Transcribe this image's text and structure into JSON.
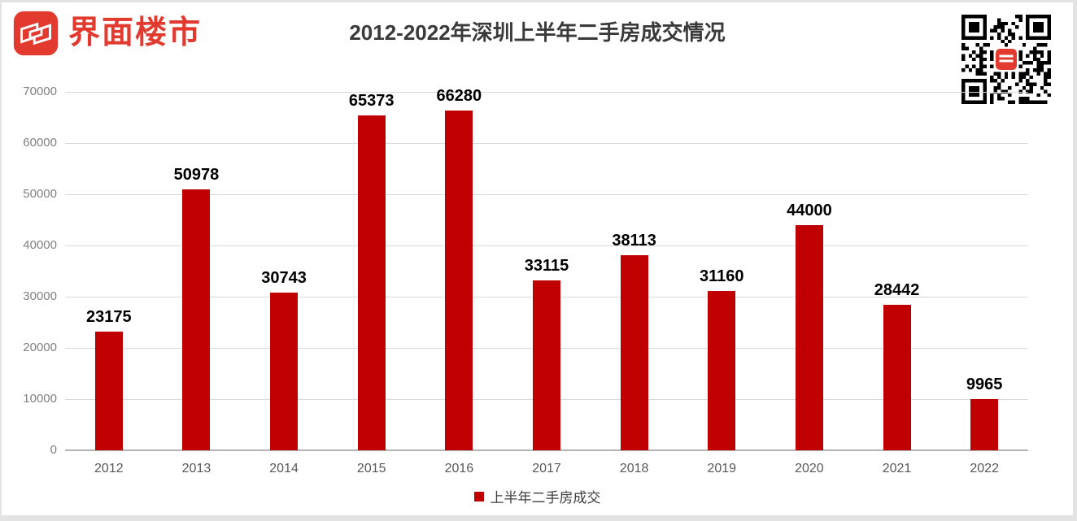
{
  "header": {
    "brand": "界面楼市"
  },
  "colors": {
    "bar": "#c00000",
    "brand_red": "#e23a2e",
    "title_text": "#3a3a3a",
    "value_label": "#000000",
    "y_tick_text": "#808080",
    "x_tick_text": "#595959",
    "legend_text": "#404040",
    "gridline": "#d9d9d9",
    "axis_line": "#b3b3b3"
  },
  "chart_data": {
    "type": "bar",
    "title": "2012-2022年深圳上半年二手房成交情况",
    "categories": [
      "2012",
      "2013",
      "2014",
      "2015",
      "2016",
      "2017",
      "2018",
      "2019",
      "2020",
      "2021",
      "2022"
    ],
    "series": [
      {
        "name": "上半年二手房成交",
        "values": [
          23175,
          50978,
          30743,
          65373,
          66280,
          33115,
          38113,
          31160,
          44000,
          28442,
          9965
        ]
      }
    ],
    "xlabel": "",
    "ylabel": "",
    "ylim": [
      0,
      70000
    ],
    "ytick_step": 10000,
    "yticks": [
      0,
      10000,
      20000,
      30000,
      40000,
      50000,
      60000,
      70000
    ],
    "grid": true,
    "data_labels": true,
    "legend_position": "bottom-center",
    "bar_color": "#c00000"
  },
  "legend": {
    "label": "上半年二手房成交",
    "swatch_color": "#c00000"
  }
}
